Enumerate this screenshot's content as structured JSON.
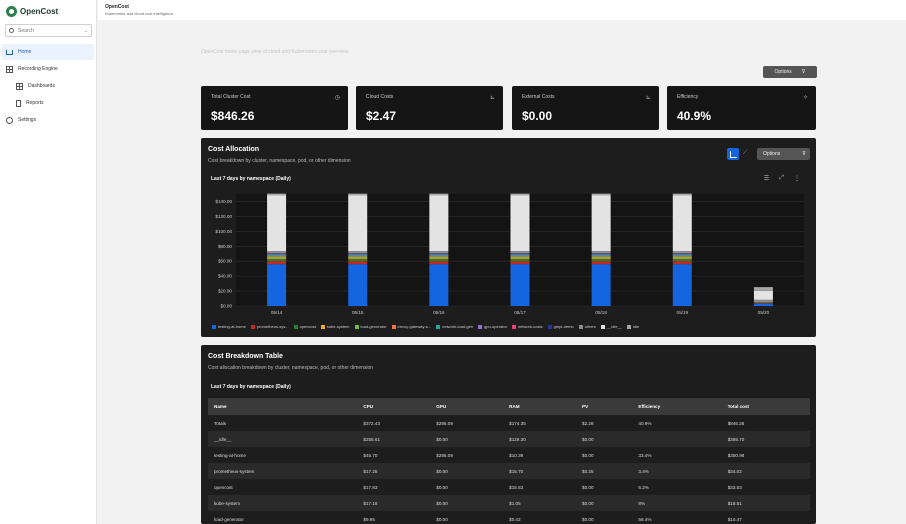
{
  "sidebar": {
    "logo": "OpenCost",
    "search_placeholder": "Search",
    "items": [
      {
        "label": "Home",
        "icon": "home-icon",
        "active": true
      },
      {
        "label": "Recording Engine",
        "icon": "grid-icon"
      },
      {
        "label": "Dashboards",
        "icon": "grid-icon"
      },
      {
        "label": "Reports",
        "icon": "document-icon"
      },
      {
        "label": "Settings",
        "icon": "gear-icon"
      }
    ]
  },
  "topbar": {
    "title": "OpenCost",
    "subtitle": "Kubernetes and cloud cost intelligence"
  },
  "page_subtitle": "OpenCost home page view of cloud and Kubernetes cost overview",
  "options_label": "Options",
  "cards": [
    {
      "label": "Total Cluster Cost",
      "value": "$846.26",
      "icon": "clock-icon"
    },
    {
      "label": "Cloud Costs",
      "value": "$2.47",
      "icon": "chart-icon"
    },
    {
      "label": "External Costs",
      "value": "$0.00",
      "icon": "chart-icon"
    },
    {
      "label": "Efficiency",
      "value": "40.9%",
      "icon": "sparkle-icon"
    }
  ],
  "allocation": {
    "title": "Cost Allocation",
    "description": "Cost breakdown by cluster, namespace, pod, or other dimension",
    "options_label": "Options",
    "chart_title": "Last 7 days by namespace (Daily)"
  },
  "chart_data": {
    "type": "bar",
    "stacked": true,
    "categories": [
      "05/14",
      "05/15",
      "05/16",
      "05/17",
      "05/18",
      "05/19",
      "05/20"
    ],
    "y_ticks": [
      "$0.00",
      "$20.00",
      "$40.00",
      "$60.00",
      "$80.00",
      "$100.00",
      "$120.00",
      "$140.00"
    ],
    "ylim": [
      0,
      150
    ],
    "grid": true,
    "legend_position": "bottom",
    "series": [
      {
        "name": "testing-at-home",
        "color": "#1565e0",
        "values": [
          56,
          56,
          56,
          56,
          56,
          56,
          3
        ]
      },
      {
        "name": "prometheus-sys...",
        "color": "#c62828",
        "values": [
          4,
          4,
          4,
          4,
          4,
          4,
          0.5
        ]
      },
      {
        "name": "opencost",
        "color": "#2e7d32",
        "values": [
          3,
          3,
          3,
          3,
          3,
          3,
          0.5
        ]
      },
      {
        "name": "kube-system",
        "color": "#f9a825",
        "values": [
          1,
          1,
          1,
          1,
          1,
          1,
          0.2
        ]
      },
      {
        "name": "load-generator",
        "color": "#6abf4b",
        "values": [
          2,
          2,
          2,
          2,
          2,
          2,
          0.3
        ]
      },
      {
        "name": "envoy-gateway-s...",
        "color": "#ff7043",
        "values": [
          1,
          1,
          1,
          1,
          1,
          1,
          0.2
        ]
      },
      {
        "name": "network-load-gen",
        "color": "#26a69a",
        "values": [
          1.5,
          1.5,
          1.5,
          1.5,
          1.5,
          1.5,
          0.2
        ]
      },
      {
        "name": "gpu-operator",
        "color": "#9c6ade",
        "values": [
          1,
          1,
          1,
          1,
          1,
          1,
          0.2
        ]
      },
      {
        "name": "network-costs",
        "color": "#ec407a",
        "values": [
          0.5,
          0.5,
          0.5,
          0.5,
          0.5,
          0.5,
          0.1
        ]
      },
      {
        "name": "gmpl-demo",
        "color": "#283593",
        "values": [
          0.5,
          0.5,
          0.5,
          0.5,
          0.5,
          0.5,
          0.1
        ]
      },
      {
        "name": "others",
        "color": "#8d8d8d",
        "values": [
          3,
          3,
          3,
          3,
          3,
          3,
          3
        ]
      },
      {
        "name": "__idle__",
        "color": "#e3e3e3",
        "values": [
          75,
          75,
          75,
          75,
          75,
          75,
          12
        ]
      },
      {
        "name": "idle",
        "color": "#a6a6a6",
        "values": [
          2,
          2,
          2,
          2,
          2,
          2,
          5
        ]
      }
    ]
  },
  "breakdown": {
    "title": "Cost Breakdown Table",
    "description": "Cost allocation breakdown by cluster, namespace, pod, or other dimension",
    "subtitle": "Last 7 days by namespace (Daily)",
    "columns": [
      "Name",
      "CPU",
      "GPU",
      "RAM",
      "PV",
      "Efficiency",
      "Total cost"
    ],
    "rows": [
      [
        "Totals",
        "$372.43",
        "$295.09",
        "$174.35",
        "$2.28",
        "40.9%",
        "$846.26"
      ],
      [
        "__idle__",
        "$255.61",
        "$0.00",
        "$129.30",
        "$0.00",
        "",
        "$385.70"
      ],
      [
        "testing-at-home",
        "$45.70",
        "$295.09",
        "$10.39",
        "$0.00",
        "33.4%",
        "$350.98"
      ],
      [
        "prometheus-system",
        "$17.25",
        "$0.00",
        "$15.70",
        "$0.25",
        "3.4%",
        "$34.02"
      ],
      [
        "opencost",
        "$17.83",
        "$0.00",
        "$15.53",
        "$0.00",
        "6.2%",
        "$33.53"
      ],
      [
        "kube-system",
        "$17.18",
        "$0.00",
        "$1.05",
        "$0.00",
        "8%",
        "$18.51"
      ],
      [
        "load-generator",
        "$9.95",
        "$0.00",
        "$0.42",
        "$0.00",
        "58.4%",
        "$10.47"
      ]
    ]
  }
}
